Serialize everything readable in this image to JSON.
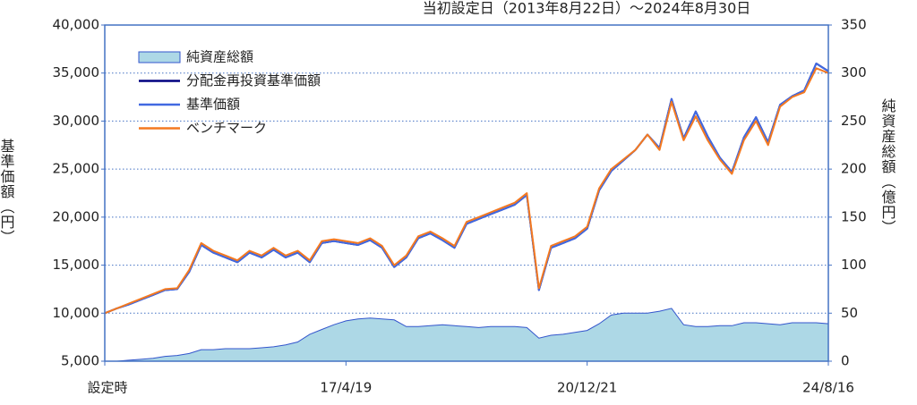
{
  "chart_data": {
    "type": "line",
    "title": "当初設定日（2013年8月22日）～2024年8月30日",
    "y_label": "基準価額（円）",
    "y2_label": "純資産総額（億円）",
    "categories": [
      "設定時",
      null,
      null,
      null,
      null,
      null,
      null,
      null,
      null,
      null,
      null,
      null,
      null,
      null,
      null,
      null,
      null,
      null,
      null,
      null,
      "17/4/19",
      null,
      null,
      null,
      null,
      null,
      null,
      null,
      null,
      null,
      null,
      null,
      null,
      null,
      null,
      null,
      null,
      null,
      null,
      null,
      "20/12/21",
      null,
      null,
      null,
      null,
      null,
      null,
      null,
      null,
      null,
      null,
      null,
      null,
      null,
      null,
      null,
      null,
      null,
      null,
      null,
      "24/8/16"
    ],
    "ylim": [
      5000,
      40000
    ],
    "yticks": [
      {
        "value": 5000,
        "label": "5,000"
      },
      {
        "value": 10000,
        "label": "10,000"
      },
      {
        "value": 15000,
        "label": "15,000"
      },
      {
        "value": 20000,
        "label": "20,000"
      },
      {
        "value": 25000,
        "label": "25,000"
      },
      {
        "value": 30000,
        "label": "30,000"
      },
      {
        "value": 35000,
        "label": "35,000"
      },
      {
        "value": 40000,
        "label": "40,000"
      }
    ],
    "y2lim": [
      0,
      350
    ],
    "y2ticks": [
      0,
      50,
      100,
      150,
      200,
      250,
      300,
      350
    ],
    "grid": true,
    "series": [
      {
        "name": "純資産総額",
        "type": "area",
        "axis": "y2",
        "color": "#add8e6",
        "values": [
          0,
          0,
          1,
          2,
          3,
          5,
          6,
          8,
          12,
          12,
          13,
          13,
          13,
          14,
          15,
          17,
          20,
          28,
          33,
          38,
          42,
          44,
          45,
          44,
          43,
          36,
          36,
          37,
          38,
          37,
          36,
          35,
          36,
          36,
          36,
          35,
          24,
          27,
          28,
          30,
          32,
          39,
          48,
          50,
          50,
          50,
          52,
          55,
          38,
          36,
          36,
          37,
          37,
          40,
          40,
          39,
          38,
          40,
          40,
          40,
          39
        ]
      },
      {
        "name": "分配金再投資基準価額",
        "color": "#000080",
        "values": [
          10000,
          10500,
          10900,
          11400,
          11900,
          12400,
          12500,
          14300,
          17100,
          16300,
          15800,
          15300,
          16300,
          15800,
          16600,
          15800,
          16300,
          15300,
          17300,
          17500,
          17300,
          17100,
          17600,
          16800,
          14800,
          15800,
          17800,
          18300,
          17600,
          16800,
          19300,
          19800,
          20300,
          20800,
          21300,
          22300,
          12400,
          16800,
          17300,
          17800,
          18800,
          22800,
          24800,
          25900,
          27000,
          28600,
          27200,
          32300,
          28200,
          31000,
          28400,
          26200,
          24700,
          28300,
          30400,
          27800,
          31700,
          32600,
          33200,
          36000,
          35200
        ]
      },
      {
        "name": "基準価額",
        "color": "#4169e1",
        "values": [
          10000,
          10500,
          10900,
          11400,
          11900,
          12400,
          12500,
          14300,
          17100,
          16300,
          15800,
          15300,
          16300,
          15800,
          16600,
          15800,
          16300,
          15300,
          17300,
          17500,
          17300,
          17100,
          17600,
          16800,
          14800,
          15800,
          17800,
          18300,
          17600,
          16800,
          19300,
          19800,
          20300,
          20800,
          21300,
          22300,
          12400,
          16800,
          17300,
          17800,
          18800,
          22800,
          24800,
          25900,
          27000,
          28600,
          27200,
          32300,
          28200,
          31000,
          28400,
          26200,
          24700,
          28300,
          30400,
          27800,
          31700,
          32600,
          33200,
          36000,
          35200
        ]
      },
      {
        "name": "ベンチマーク",
        "color": "#f47920",
        "values": [
          10000,
          10500,
          11000,
          11500,
          12000,
          12500,
          12600,
          14500,
          17300,
          16500,
          16000,
          15500,
          16500,
          16000,
          16800,
          16000,
          16500,
          15500,
          17500,
          17700,
          17500,
          17300,
          17800,
          17000,
          15000,
          16000,
          18000,
          18500,
          17800,
          17000,
          19500,
          20000,
          20500,
          21000,
          21500,
          22500,
          12600,
          17000,
          17500,
          18000,
          19000,
          23000,
          25000,
          26000,
          27000,
          28600,
          27000,
          32000,
          28000,
          30500,
          28000,
          26000,
          24500,
          28000,
          30000,
          27500,
          31500,
          32500,
          33000,
          35500,
          35000
        ]
      }
    ]
  }
}
